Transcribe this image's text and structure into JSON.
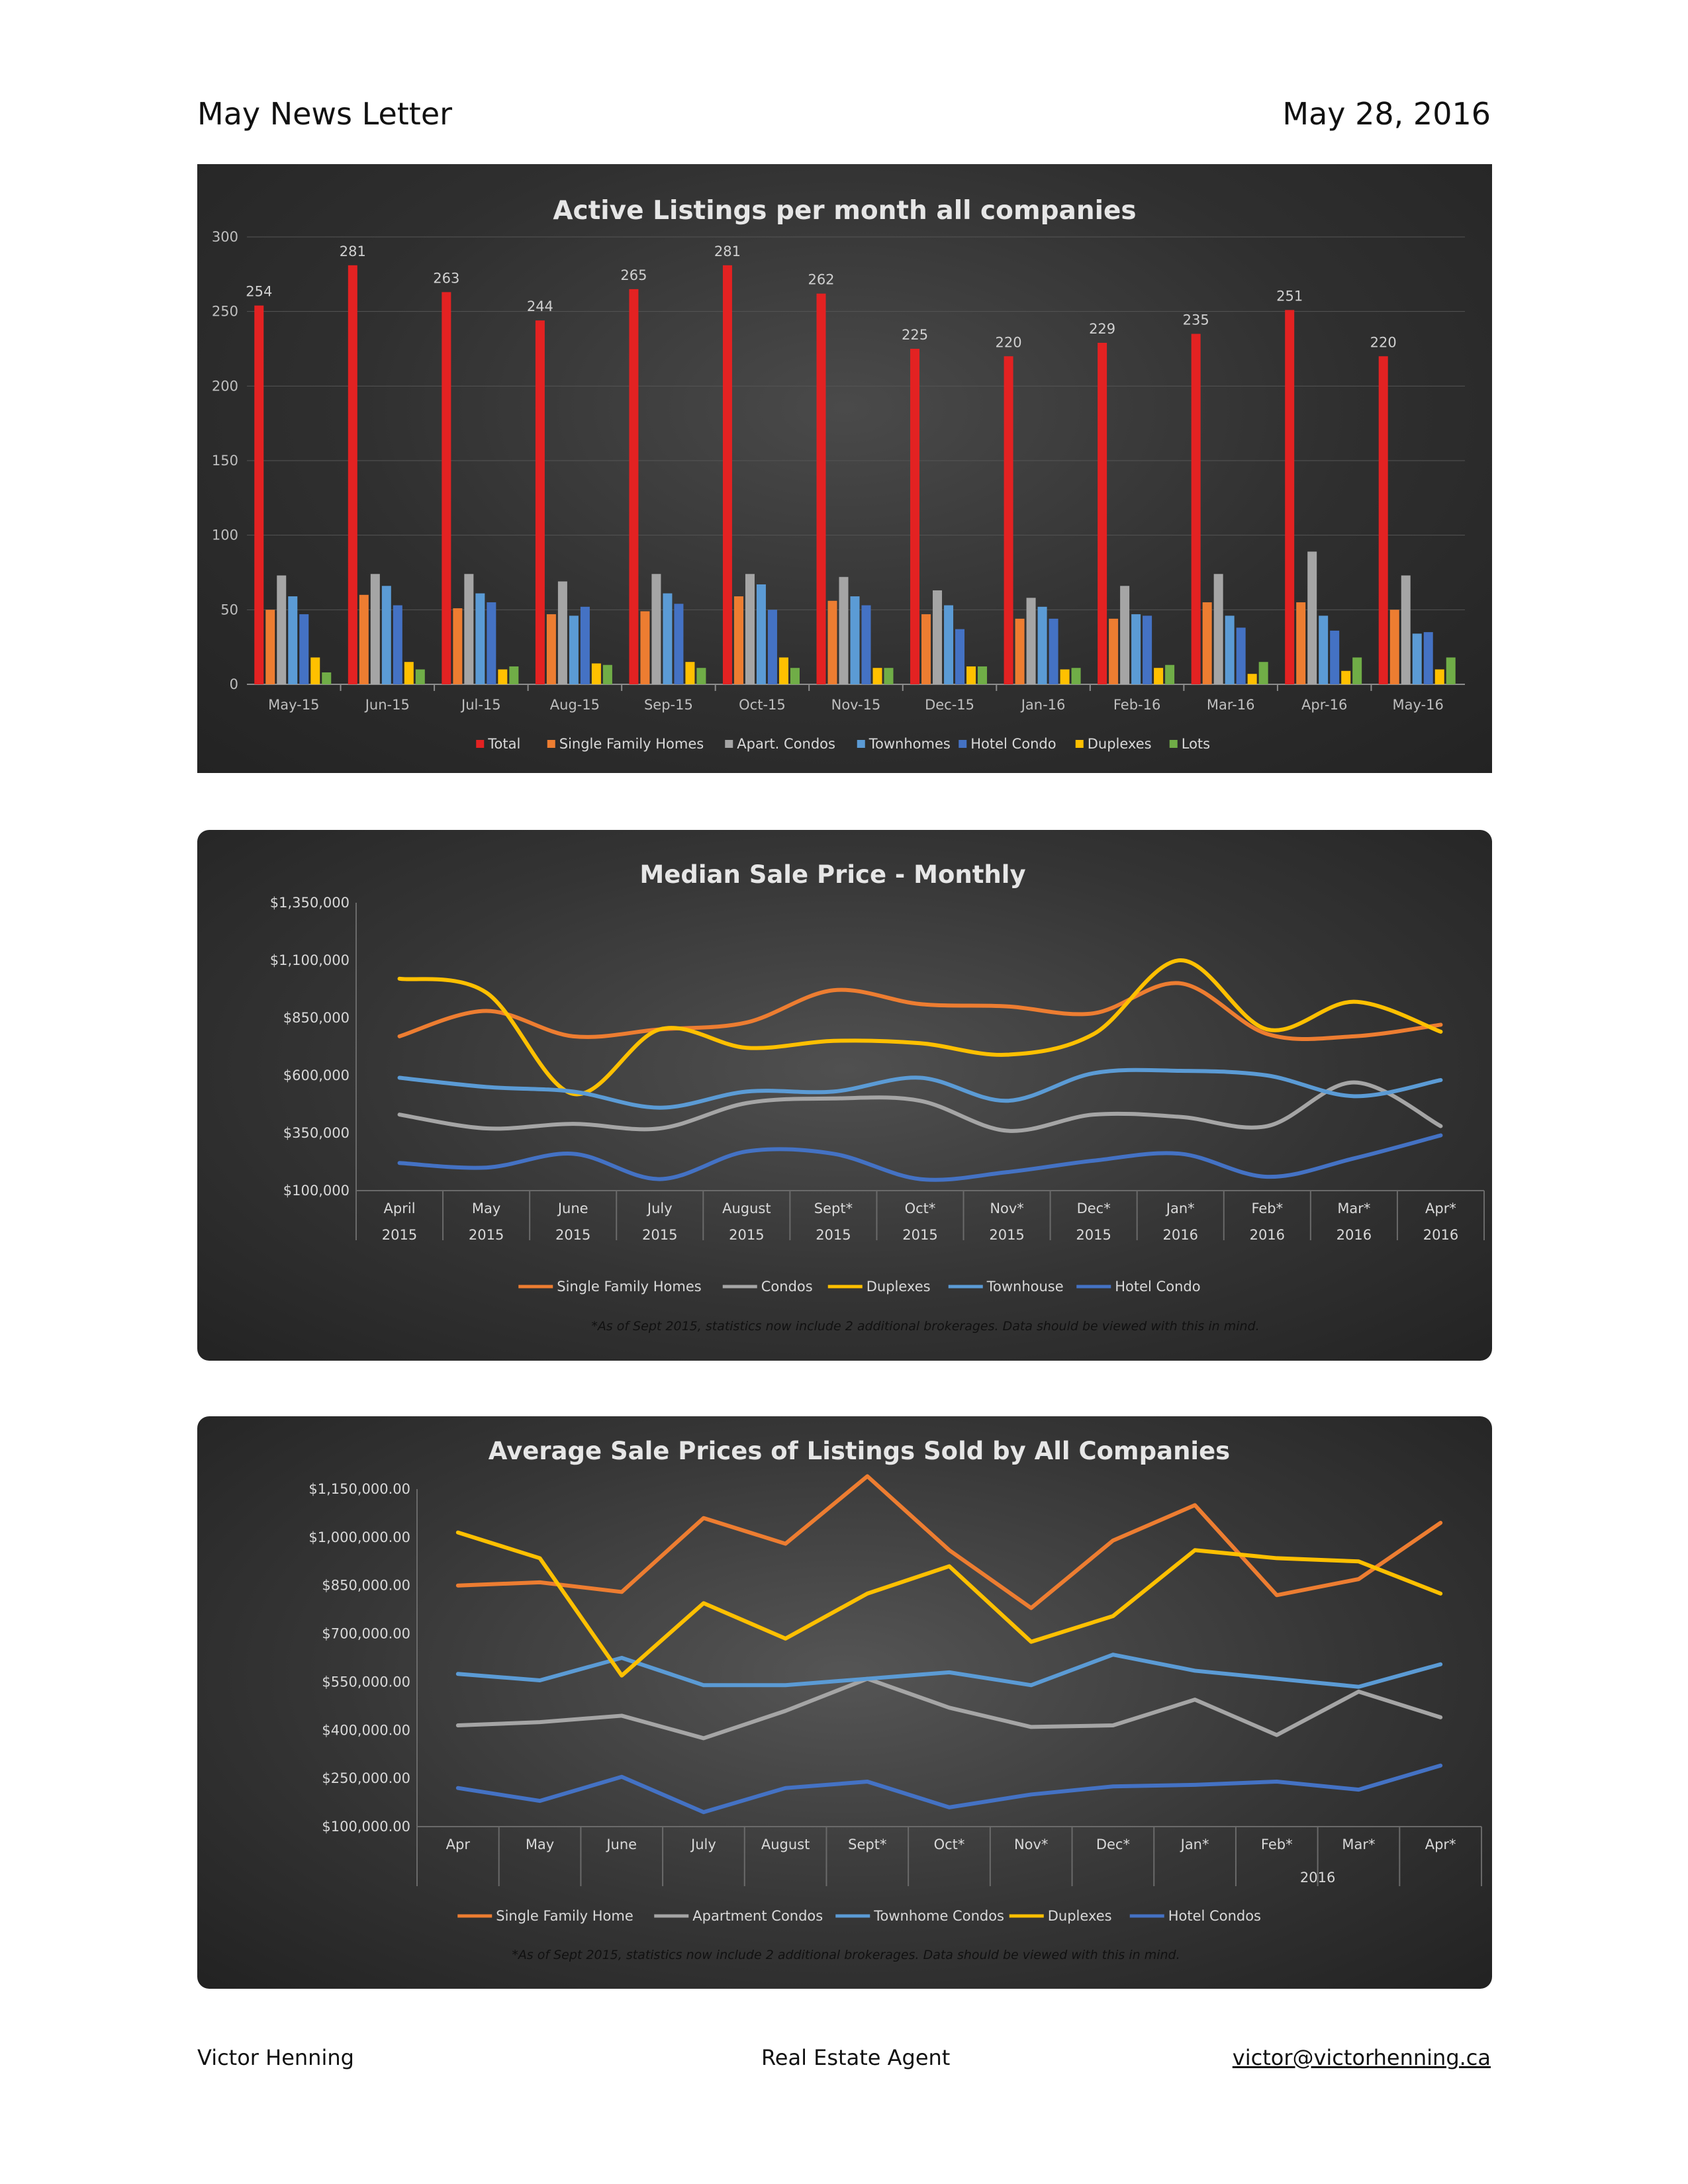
{
  "header": {
    "title": "May News Letter",
    "date": "May 28, 2016"
  },
  "footer": {
    "name": "Victor Henning",
    "role": "Real Estate Agent",
    "email": "victor@victorhenning.ca"
  },
  "chart_data": [
    {
      "type": "bar",
      "title": "Active Listings per month all companies",
      "categories": [
        "May-15",
        "Jun-15",
        "Jul-15",
        "Aug-15",
        "Sep-15",
        "Oct-15",
        "Nov-15",
        "Dec-15",
        "Jan-16",
        "Feb-16",
        "Mar-16",
        "Apr-16",
        "May-16"
      ],
      "ylim": [
        0,
        300
      ],
      "yticks": [
        "0",
        "50",
        "100",
        "150",
        "200",
        "250",
        "300"
      ],
      "legend_position": "bottom",
      "series": [
        {
          "name": "Total",
          "color": "#e32222",
          "values": [
            254,
            281,
            263,
            244,
            265,
            281,
            262,
            225,
            220,
            229,
            235,
            251,
            220
          ],
          "labels": [
            "254",
            "281",
            "263",
            "244",
            "265",
            "281",
            "262",
            "225",
            "220",
            "229",
            "235",
            "251",
            "220"
          ]
        },
        {
          "name": "Single Family Homes",
          "color": "#ed7d31",
          "values": [
            50,
            60,
            51,
            47,
            49,
            59,
            56,
            47,
            44,
            44,
            55,
            55,
            50
          ]
        },
        {
          "name": "Apart. Condos",
          "color": "#a5a5a5",
          "values": [
            73,
            74,
            74,
            69,
            74,
            74,
            72,
            63,
            58,
            66,
            74,
            89,
            73
          ]
        },
        {
          "name": "Townhomes",
          "color": "#5b9bd5",
          "values": [
            59,
            66,
            61,
            46,
            61,
            67,
            59,
            53,
            52,
            47,
            46,
            46,
            34
          ]
        },
        {
          "name": "Hotel Condo",
          "color": "#4472c4",
          "values": [
            47,
            53,
            55,
            52,
            54,
            50,
            53,
            37,
            44,
            46,
            38,
            36,
            35
          ]
        },
        {
          "name": "Duplexes",
          "color": "#ffc000",
          "values": [
            18,
            15,
            10,
            14,
            15,
            18,
            11,
            12,
            10,
            11,
            7,
            9,
            10
          ]
        },
        {
          "name": "Lots",
          "color": "#70ad47",
          "values": [
            8,
            10,
            12,
            13,
            11,
            11,
            11,
            12,
            11,
            13,
            15,
            18,
            18
          ]
        }
      ]
    },
    {
      "type": "line",
      "title": "Median Sale Price - Monthly",
      "categories": [
        "April",
        "May",
        "June",
        "July",
        "August",
        "Sept*",
        "Oct*",
        "Nov*",
        "Dec*",
        "Jan*",
        "Feb*",
        "Mar*",
        "Apr*"
      ],
      "years": [
        "2015",
        "2015",
        "2015",
        "2015",
        "2015",
        "2015",
        "2015",
        "2015",
        "2015",
        "2016",
        "2016",
        "2016",
        "2016"
      ],
      "ylim": [
        100000,
        1350000
      ],
      "yticks": [
        "$100,000",
        "$350,000",
        "$600,000",
        "$850,000",
        "$1,100,000",
        "$1,350,000"
      ],
      "legend_position": "bottom",
      "note": "*As of Sept 2015, statistics now include 2 additional brokerages. Data should be viewed with this in mind.",
      "series": [
        {
          "name": "Single Family Homes",
          "color": "#ed7d31",
          "values": [
            770000,
            880000,
            770000,
            800000,
            830000,
            970000,
            910000,
            900000,
            870000,
            1000000,
            780000,
            770000,
            820000
          ]
        },
        {
          "name": "Condos",
          "color": "#a5a5a5",
          "values": [
            430000,
            370000,
            390000,
            370000,
            480000,
            500000,
            490000,
            360000,
            430000,
            420000,
            380000,
            570000,
            380000
          ]
        },
        {
          "name": "Duplexes",
          "color": "#ffc000",
          "values": [
            1020000,
            960000,
            520000,
            800000,
            720000,
            750000,
            740000,
            690000,
            780000,
            1100000,
            800000,
            920000,
            790000
          ]
        },
        {
          "name": "Townhouse",
          "color": "#5b9bd5",
          "values": [
            590000,
            550000,
            530000,
            460000,
            530000,
            530000,
            590000,
            490000,
            610000,
            620000,
            600000,
            510000,
            580000
          ]
        },
        {
          "name": "Hotel Condo",
          "color": "#4472c4",
          "values": [
            220000,
            200000,
            260000,
            150000,
            270000,
            260000,
            150000,
            180000,
            230000,
            260000,
            160000,
            240000,
            340000
          ]
        }
      ]
    },
    {
      "type": "line",
      "title": "Average Sale Prices of Listings Sold by All Companies",
      "categories": [
        "Apr",
        "May",
        "June",
        "July",
        "August",
        "Sept*",
        "Oct*",
        "Nov*",
        "Dec*",
        "Jan*",
        "Feb*",
        "Mar*",
        "Apr*"
      ],
      "year_label": "2016",
      "ylim": [
        100000,
        1150000
      ],
      "yticks": [
        "$100,000.00",
        "$250,000.00",
        "$400,000.00",
        "$550,000.00",
        "$700,000.00",
        "$850,000.00",
        "$1,000,000.00",
        "$1,150,000.00"
      ],
      "legend_position": "bottom",
      "note": "*As of Sept 2015, statistics now include 2 additional brokerages. Data should be viewed with this in mind.",
      "series": [
        {
          "name": "Single Family Home",
          "color": "#ed7d31",
          "values": [
            850000,
            860000,
            830000,
            1060000,
            980000,
            1190000,
            960000,
            780000,
            990000,
            1100000,
            820000,
            870000,
            1045000
          ]
        },
        {
          "name": "Apartment Condos",
          "color": "#a5a5a5",
          "values": [
            415000,
            425000,
            445000,
            375000,
            460000,
            560000,
            470000,
            410000,
            415000,
            495000,
            385000,
            520000,
            440000
          ]
        },
        {
          "name": "Townhome Condos",
          "color": "#5b9bd5",
          "values": [
            575000,
            555000,
            625000,
            540000,
            540000,
            560000,
            580000,
            540000,
            635000,
            585000,
            560000,
            535000,
            605000
          ]
        },
        {
          "name": "Duplexes",
          "color": "#ffc000",
          "values": [
            1015000,
            935000,
            570000,
            795000,
            685000,
            825000,
            910000,
            675000,
            755000,
            960000,
            935000,
            925000,
            825000
          ]
        },
        {
          "name": "Hotel Condos",
          "color": "#4472c4",
          "values": [
            220000,
            180000,
            255000,
            145000,
            220000,
            240000,
            160000,
            200000,
            225000,
            230000,
            240000,
            215000,
            290000
          ]
        }
      ]
    }
  ]
}
